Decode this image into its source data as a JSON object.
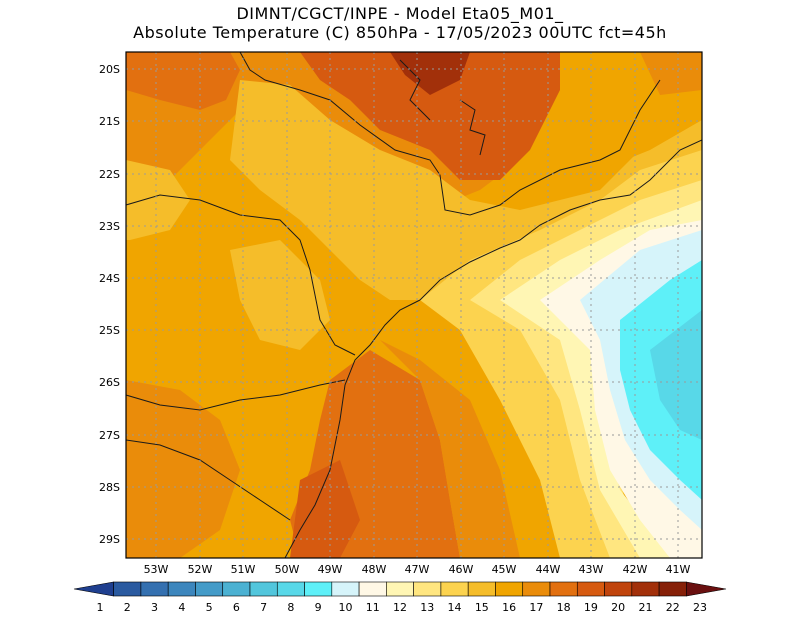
{
  "header": {
    "line1": "DIMNT/CGCT/INPE -  Model Eta05_M01_",
    "line2": "Absolute Temperature (C) 850hPa -  17/05/2023 00UTC fct=45h"
  },
  "axes": {
    "lat_labels": [
      "20S",
      "21S",
      "22S",
      "23S",
      "24S",
      "25S",
      "26S",
      "27S",
      "28S",
      "29S"
    ],
    "lon_labels": [
      "53W",
      "52W",
      "51W",
      "50W",
      "49W",
      "48W",
      "47W",
      "46W",
      "45W",
      "44W",
      "43W",
      "42W",
      "41W"
    ]
  },
  "colorbar": {
    "labels": [
      "1",
      "2",
      "3",
      "4",
      "5",
      "6",
      "7",
      "8",
      "9",
      "10",
      "11",
      "12",
      "13",
      "14",
      "15",
      "16",
      "17",
      "18",
      "19",
      "20",
      "21",
      "22",
      "23"
    ],
    "colors": [
      "#1f3f8f",
      "#2a5aa0",
      "#3470b0",
      "#3c86bd",
      "#449bc8",
      "#4bb1d2",
      "#52c6dc",
      "#58d8e8",
      "#5ef0f8",
      "#d6f4fa",
      "#fff8e6",
      "#fff6b4",
      "#ffe680",
      "#fcd34f",
      "#f5bd2a",
      "#f0a500",
      "#ea8c0a",
      "#e27010",
      "#d65a10",
      "#c0440c",
      "#a2300a",
      "#862008",
      "#6a1010"
    ]
  },
  "colors": {
    "ocean_cool": "#5ee8f4",
    "land_warm": "#ea8c0a",
    "gridline": "#9a9a9a"
  }
}
